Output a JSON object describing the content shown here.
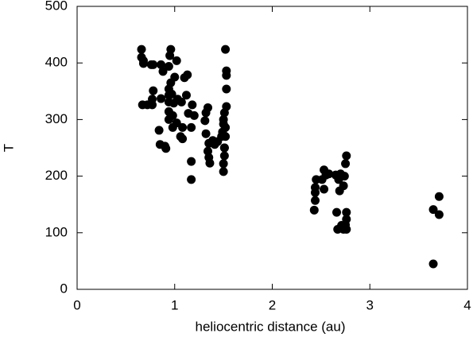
{
  "chart_data": {
    "type": "scatter",
    "xlabel": "heliocentric distance (au)",
    "ylabel": "T",
    "xlim": [
      0,
      4
    ],
    "ylim": [
      0,
      500
    ],
    "xticks": [
      0,
      1,
      2,
      3,
      4
    ],
    "yticks": [
      0,
      100,
      200,
      300,
      400,
      500
    ],
    "color": "#000000",
    "x": [
      0.66,
      0.66,
      0.68,
      0.68,
      0.67,
      0.72,
      0.77,
      0.76,
      0.78,
      0.86,
      0.77,
      0.78,
      0.88,
      0.86,
      0.84,
      0.85,
      0.9,
      0.91,
      0.94,
      0.96,
      0.95,
      0.96,
      0.94,
      0.94,
      0.94,
      0.94,
      0.94,
      0.97,
      0.99,
      0.98,
      0.98,
      1.02,
      1.0,
      1.03,
      1.02,
      1.06,
      1.08,
      1.07,
      1.08,
      1.1,
      1.13,
      1.12,
      1.14,
      1.18,
      1.17,
      1.17,
      1.17,
      1.2,
      1.32,
      1.31,
      1.32,
      1.34,
      1.35,
      1.34,
      1.35,
      1.36,
      1.39,
      1.41,
      1.44,
      1.48,
      1.49,
      1.5,
      1.5,
      1.51,
      1.51,
      1.51,
      1.5,
      1.5,
      1.52,
      1.53,
      1.53,
      1.53,
      1.53,
      1.52,
      1.52,
      1.51,
      2.43,
      2.44,
      2.44,
      2.44,
      2.45,
      2.51,
      2.53,
      2.53,
      2.55,
      2.58,
      2.65,
      2.68,
      2.7,
      2.69,
      2.73,
      2.74,
      2.75,
      2.76,
      2.66,
      2.67,
      2.71,
      2.73,
      2.76,
      2.76,
      2.76,
      2.75,
      3.65,
      3.71,
      3.71,
      3.65
    ],
    "values": [
      424,
      410,
      404,
      399,
      326,
      326,
      326,
      397,
      397,
      397,
      336,
      351,
      385,
      337,
      281,
      256,
      253,
      249,
      394,
      424,
      413,
      365,
      354,
      343,
      331,
      314,
      300,
      345,
      329,
      307,
      286,
      404,
      375,
      336,
      294,
      270,
      266,
      331,
      286,
      374,
      379,
      343,
      311,
      326,
      286,
      226,
      194,
      307,
      275,
      298,
      312,
      321,
      258,
      244,
      233,
      223,
      263,
      256,
      261,
      270,
      278,
      292,
      300,
      312,
      250,
      236,
      222,
      208,
      424,
      386,
      378,
      354,
      323,
      286,
      270,
      250,
      140,
      157,
      171,
      180,
      194,
      194,
      211,
      177,
      202,
      204,
      202,
      194,
      204,
      174,
      183,
      200,
      222,
      236,
      136,
      106,
      113,
      106,
      136,
      124,
      106,
      114,
      141,
      164,
      132,
      45
    ],
    "grid": false
  }
}
